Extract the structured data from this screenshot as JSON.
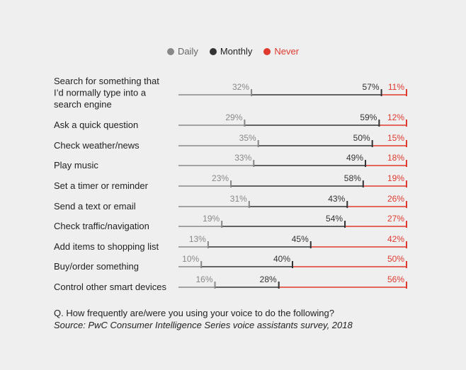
{
  "chart_data": {
    "type": "bar",
    "subtype": "stacked-percentage-line",
    "legend": [
      {
        "name": "Daily",
        "color": "#888888"
      },
      {
        "name": "Monthly",
        "color": "#333333"
      },
      {
        "name": "Never",
        "color": "#e03a2f"
      }
    ],
    "legend_position": "top-center",
    "categories": [
      "Search for something that I’d normally type into a search engine",
      "Ask a quick question",
      "Check weather/news",
      "Play music",
      "Set a timer or reminder",
      "Send a text or email",
      "Check traffic/navigation",
      "Add items to shopping list",
      "Buy/order something",
      "Control other smart devices"
    ],
    "category_lines": [
      [
        "Search for something that",
        "I’d normally type into a",
        "search engine"
      ],
      [
        "Ask a quick question"
      ],
      [
        "Check weather/news"
      ],
      [
        "Play music"
      ],
      [
        "Set a timer or reminder"
      ],
      [
        "Send a text or email"
      ],
      [
        "Check traffic/navigation"
      ],
      [
        "Add items to shopping list"
      ],
      [
        "Buy/order something"
      ],
      [
        "Control other smart devices"
      ]
    ],
    "series": [
      {
        "name": "Daily",
        "values": [
          32,
          29,
          35,
          33,
          23,
          31,
          19,
          13,
          10,
          16
        ]
      },
      {
        "name": "Monthly",
        "values": [
          57,
          59,
          50,
          49,
          58,
          43,
          54,
          45,
          40,
          28
        ]
      },
      {
        "name": "Never",
        "values": [
          11,
          12,
          15,
          18,
          19,
          26,
          27,
          42,
          50,
          56
        ]
      }
    ],
    "ylim": [
      0,
      100
    ],
    "grid": false
  },
  "footer": {
    "question": "Q. How frequently are/were you using your voice to do the following?",
    "source": "Source: PwC Consumer Intelligence Series voice assistants survey, 2018"
  }
}
